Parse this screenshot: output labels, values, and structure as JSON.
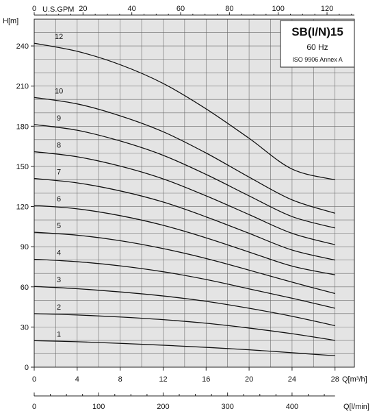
{
  "chart_data": {
    "type": "line",
    "legend": {
      "title": "SB(I/N)15",
      "frequency": "60 Hz",
      "standard": "ISO 9906 Annex A"
    },
    "y_axis": {
      "unit": "H[m]",
      "range": [
        0,
        260
      ],
      "ticks": [
        "0",
        "30",
        "60",
        "90",
        "120",
        "150",
        "180",
        "210",
        "240"
      ]
    },
    "x_axis_bottom": {
      "unit": "Q[m³/h]",
      "range": [
        0,
        28
      ],
      "ticks": [
        "0",
        "4",
        "8",
        "12",
        "16",
        "20",
        "24",
        "28"
      ]
    },
    "x_axis_top": {
      "unit": "U.S.GPM",
      "ticks": [
        "0",
        "20",
        "40",
        "60",
        "80",
        "100",
        "120"
      ]
    },
    "x_axis_lpm": {
      "unit": "Q[l/min]",
      "ticks": [
        "0",
        "100",
        "200",
        "300",
        "400"
      ]
    },
    "grid": true,
    "x": [
      0,
      4,
      8,
      12,
      16,
      20,
      24,
      28
    ],
    "series": [
      {
        "label": "1",
        "values": [
          19.8,
          19.0,
          17.8,
          16.4,
          14.8,
          13.0,
          10.8,
          8.5
        ]
      },
      {
        "label": "2",
        "values": [
          40.0,
          39.0,
          37.5,
          35.5,
          32.8,
          29.2,
          25.0,
          20.0
        ]
      },
      {
        "label": "3",
        "values": [
          60.3,
          58.6,
          56.2,
          53.2,
          49.2,
          44.0,
          38.0,
          31.0
        ]
      },
      {
        "label": "4",
        "values": [
          80.6,
          78.8,
          75.7,
          71.3,
          65.5,
          58.5,
          51.5,
          44.0
        ]
      },
      {
        "label": "5",
        "values": [
          100.8,
          98.6,
          94.5,
          88.6,
          81.2,
          72.5,
          63.5,
          55.0
        ]
      },
      {
        "label": "6",
        "values": [
          120.9,
          118.3,
          113.2,
          106.0,
          96.6,
          86.0,
          75.5,
          69.0
        ]
      },
      {
        "label": "7",
        "values": [
          141.0,
          137.7,
          131.7,
          123.4,
          112.3,
          100.0,
          87.5,
          80.0
        ]
      },
      {
        "label": "8",
        "values": [
          161.0,
          157.2,
          150.2,
          140.7,
          128.0,
          114.0,
          100.0,
          91.5
        ]
      },
      {
        "label": "9",
        "values": [
          181.3,
          177.0,
          169.0,
          158.3,
          144.0,
          128.0,
          112.5,
          104.0
        ]
      },
      {
        "label": "10",
        "values": [
          201.5,
          196.7,
          187.8,
          175.9,
          160.0,
          142.0,
          125.0,
          115.0
        ]
      },
      {
        "label": "12",
        "values": [
          242.0,
          236.0,
          226.0,
          212.0,
          193.0,
          171.0,
          148.0,
          140.0
        ]
      }
    ]
  }
}
